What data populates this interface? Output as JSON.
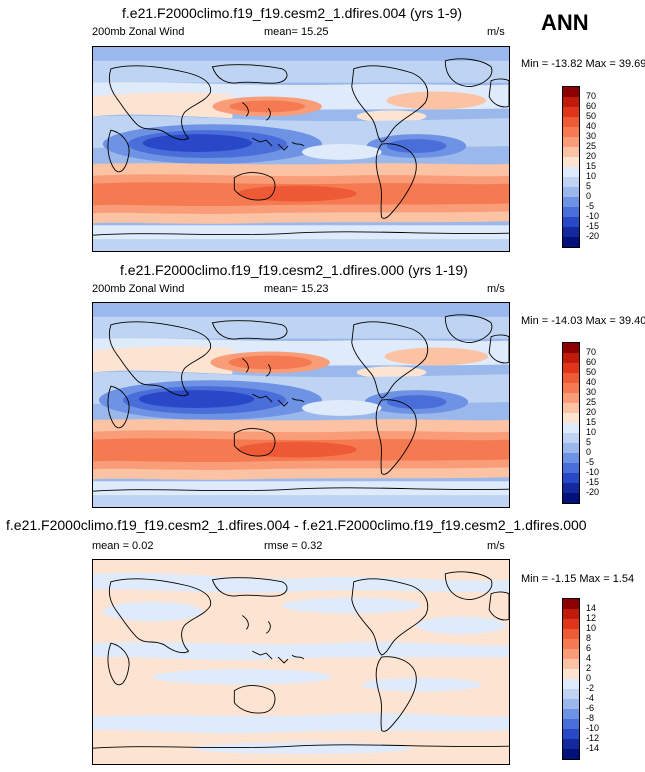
{
  "season": "ANN",
  "panels": [
    {
      "title": "f.e21.F2000climo.f19_f19.cesm2_1.dfires.004 (yrs 1-9)",
      "left_label": "200mb Zonal Wind",
      "center_label": "mean=  15.25",
      "units": "m/s",
      "minmax": "Min = -13.82 Max =  39.69"
    },
    {
      "title": "f.e21.F2000climo.f19_f19.cesm2_1.dfires.000 (yrs 1-19)",
      "left_label": "200mb Zonal Wind",
      "center_label": "mean=  15.23",
      "units": "m/s",
      "minmax": "Min = -14.03 Max =  39.40"
    },
    {
      "title": "f.e21.F2000climo.f19_f19.cesm2_1.dfires.004 - f.e21.F2000climo.f19_f19.cesm2_1.dfires.000",
      "left_label": "mean =   0.02",
      "center_label": "rmse =   0.32",
      "units": "m/s",
      "minmax": "Min =  -1.15 Max =   1.54"
    }
  ],
  "colorbar_abs": {
    "labels": [
      "70",
      "60",
      "50",
      "40",
      "30",
      "25",
      "20",
      "15",
      "10",
      "5",
      "0",
      "-5",
      "-10",
      "-15",
      "-20"
    ],
    "colors": [
      "#8b0000",
      "#c01a0a",
      "#e0351a",
      "#ef5a36",
      "#f57a52",
      "#f99d78",
      "#fbc2a4",
      "#fde3d2",
      "#dfeafa",
      "#bfd4f2",
      "#9ab8ec",
      "#6e92e4",
      "#4a6ed9",
      "#2848c8",
      "#1428a0",
      "#00127a"
    ]
  },
  "colorbar_diff": {
    "labels": [
      "14",
      "12",
      "10",
      "8",
      "6",
      "4",
      "2",
      "0",
      "-2",
      "-4",
      "-6",
      "-8",
      "-10",
      "-12",
      "-14"
    ],
    "colors": [
      "#8b0000",
      "#c01a0a",
      "#e0351a",
      "#ef5a36",
      "#f57a52",
      "#f99d78",
      "#fbc2a4",
      "#fde3d2",
      "#dfeafa",
      "#bfd4f2",
      "#9ab8ec",
      "#6e92e4",
      "#4a6ed9",
      "#2848c8",
      "#1428a0",
      "#00127a"
    ]
  }
}
